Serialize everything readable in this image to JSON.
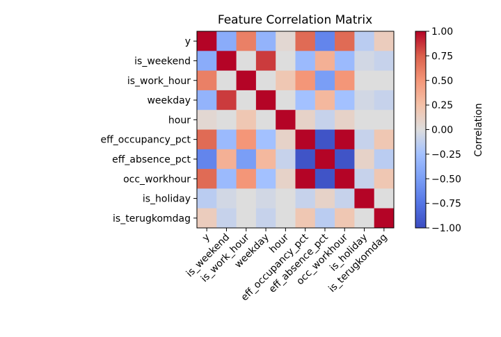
{
  "chart_data": {
    "type": "heatmap",
    "title": "Feature Correlation Matrix",
    "labels": [
      "y",
      "is_weekend",
      "is_work_hour",
      "weekday",
      "hour",
      "eff_occupancy_pct",
      "eff_absence_pct",
      "occ_workhour",
      "is_holiday",
      "is_terugkomdag"
    ],
    "values": [
      [
        1.0,
        -0.4,
        0.6,
        -0.35,
        0.05,
        0.7,
        -0.65,
        0.7,
        -0.15,
        0.15
      ],
      [
        -0.4,
        1.0,
        0.0,
        0.85,
        0.0,
        -0.3,
        0.35,
        -0.3,
        -0.05,
        -0.1
      ],
      [
        0.6,
        0.0,
        1.0,
        0.0,
        0.2,
        0.5,
        -0.5,
        0.5,
        0.0,
        0.0
      ],
      [
        -0.35,
        0.85,
        0.0,
        1.0,
        0.0,
        -0.25,
        0.3,
        -0.25,
        -0.05,
        -0.1
      ],
      [
        0.05,
        0.0,
        0.2,
        0.0,
        1.0,
        0.1,
        -0.1,
        0.1,
        0.0,
        0.0
      ],
      [
        0.7,
        -0.3,
        0.5,
        -0.25,
        0.1,
        1.0,
        -0.95,
        1.0,
        -0.1,
        0.2
      ],
      [
        -0.65,
        0.35,
        -0.5,
        0.3,
        -0.1,
        -0.95,
        1.0,
        -0.95,
        0.1,
        -0.15
      ],
      [
        0.7,
        -0.3,
        0.5,
        -0.25,
        0.1,
        1.0,
        -0.95,
        1.0,
        -0.1,
        0.2
      ],
      [
        -0.15,
        -0.05,
        0.0,
        -0.05,
        0.0,
        -0.1,
        0.1,
        -0.1,
        1.0,
        0.0
      ],
      [
        0.15,
        -0.1,
        0.0,
        -0.1,
        0.0,
        0.2,
        -0.15,
        0.2,
        0.0,
        1.0
      ]
    ],
    "colorscale": "coolwarm",
    "vmin": -1.0,
    "vmax": 1.0,
    "colorbar": {
      "label": "Correlation",
      "ticks": [
        "1.00",
        "0.75",
        "0.50",
        "0.25",
        "0.00",
        "−0.25",
        "−0.50",
        "−0.75",
        "−1.00"
      ],
      "tick_values": [
        1.0,
        0.75,
        0.5,
        0.25,
        0.0,
        -0.25,
        -0.5,
        -0.75,
        -1.0
      ]
    },
    "grid": false
  }
}
